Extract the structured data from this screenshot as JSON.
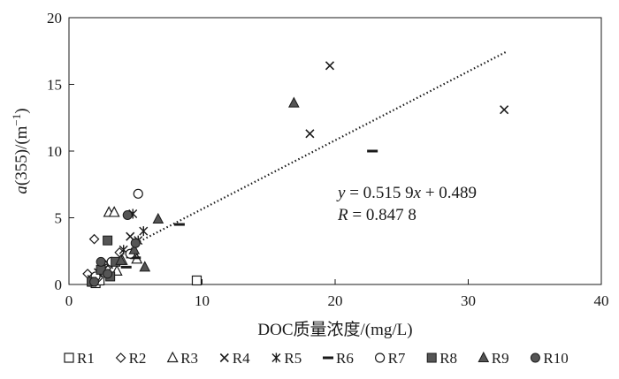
{
  "chart_data": {
    "type": "scatter",
    "title": "",
    "xlabel": "DOC质量浓度/(mg/L)",
    "ylabel": {
      "prefix": "a",
      "suffix": "(355)/(m",
      "exponent": "−1",
      "close": ")"
    },
    "xlim": [
      0,
      40
    ],
    "ylim": [
      0,
      20
    ],
    "xticks": [
      "0",
      "10",
      "20",
      "30",
      "40"
    ],
    "yticks": [
      "0",
      "5",
      "10",
      "15",
      "20"
    ],
    "grid": false,
    "legend_position": "bottom",
    "series": [
      {
        "name": "R1",
        "marker": "square-open",
        "points": [
          [
            1.8,
            0.2
          ],
          [
            2.0,
            0.1
          ],
          [
            2.3,
            0.3
          ],
          [
            9.6,
            0.3
          ]
        ]
      },
      {
        "name": "R2",
        "marker": "diamond-open",
        "points": [
          [
            1.4,
            0.8
          ],
          [
            1.9,
            3.4
          ],
          [
            2.2,
            0.5
          ],
          [
            2.8,
            1.2
          ],
          [
            3.8,
            2.4
          ]
        ]
      },
      {
        "name": "R3",
        "marker": "triangle-open",
        "points": [
          [
            3.0,
            5.4
          ],
          [
            3.4,
            5.4
          ],
          [
            3.6,
            1.0
          ],
          [
            4.0,
            1.8
          ],
          [
            4.7,
            2.3
          ],
          [
            5.1,
            1.9
          ]
        ]
      },
      {
        "name": "R4",
        "marker": "x",
        "points": [
          [
            18.1,
            11.3
          ],
          [
            19.6,
            16.4
          ],
          [
            32.7,
            13.1
          ],
          [
            4.6,
            3.6
          ],
          [
            2.2,
            0.9
          ],
          [
            3.0,
            1.5
          ]
        ]
      },
      {
        "name": "R5",
        "marker": "star",
        "points": [
          [
            4.8,
            5.3
          ],
          [
            5.6,
            4.0
          ],
          [
            5.2,
            3.3
          ],
          [
            4.1,
            2.6
          ],
          [
            2.5,
            1.5
          ],
          [
            1.7,
            0.4
          ]
        ]
      },
      {
        "name": "R6",
        "marker": "dash",
        "points": [
          [
            22.8,
            10.0
          ],
          [
            8.3,
            4.5
          ],
          [
            4.3,
            1.3
          ],
          [
            5.0,
            2.0
          ]
        ]
      },
      {
        "name": "R7",
        "marker": "circle-open",
        "points": [
          [
            5.2,
            6.8
          ],
          [
            4.6,
            2.3
          ],
          [
            3.2,
            1.7
          ],
          [
            2.0,
            0.6
          ]
        ]
      },
      {
        "name": "R8",
        "marker": "square-filled",
        "points": [
          [
            2.9,
            3.3
          ],
          [
            3.5,
            1.7
          ],
          [
            2.4,
            1.1
          ],
          [
            1.7,
            0.2
          ],
          [
            3.1,
            0.6
          ]
        ]
      },
      {
        "name": "R9",
        "marker": "triangle-filled",
        "points": [
          [
            16.9,
            13.6
          ],
          [
            6.7,
            4.9
          ],
          [
            5.7,
            1.3
          ],
          [
            4.9,
            2.6
          ],
          [
            3.9,
            1.8
          ]
        ]
      },
      {
        "name": "R10",
        "marker": "circle-filled",
        "points": [
          [
            4.4,
            5.2
          ],
          [
            5.0,
            3.1
          ],
          [
            2.4,
            1.7
          ],
          [
            2.9,
            0.8
          ],
          [
            1.9,
            0.2
          ]
        ]
      }
    ],
    "trendline": {
      "style": "dotted",
      "slope": 0.5159,
      "intercept": 0.489,
      "x_range": [
        4.8,
        32.8
      ]
    },
    "annotations": {
      "equation_y": "y",
      "equation_rest": " = 0.515 9",
      "equation_x": "x",
      "equation_tail": " + 0.489",
      "r_label": "R",
      "r_rest": " = 0.847 8"
    }
  }
}
